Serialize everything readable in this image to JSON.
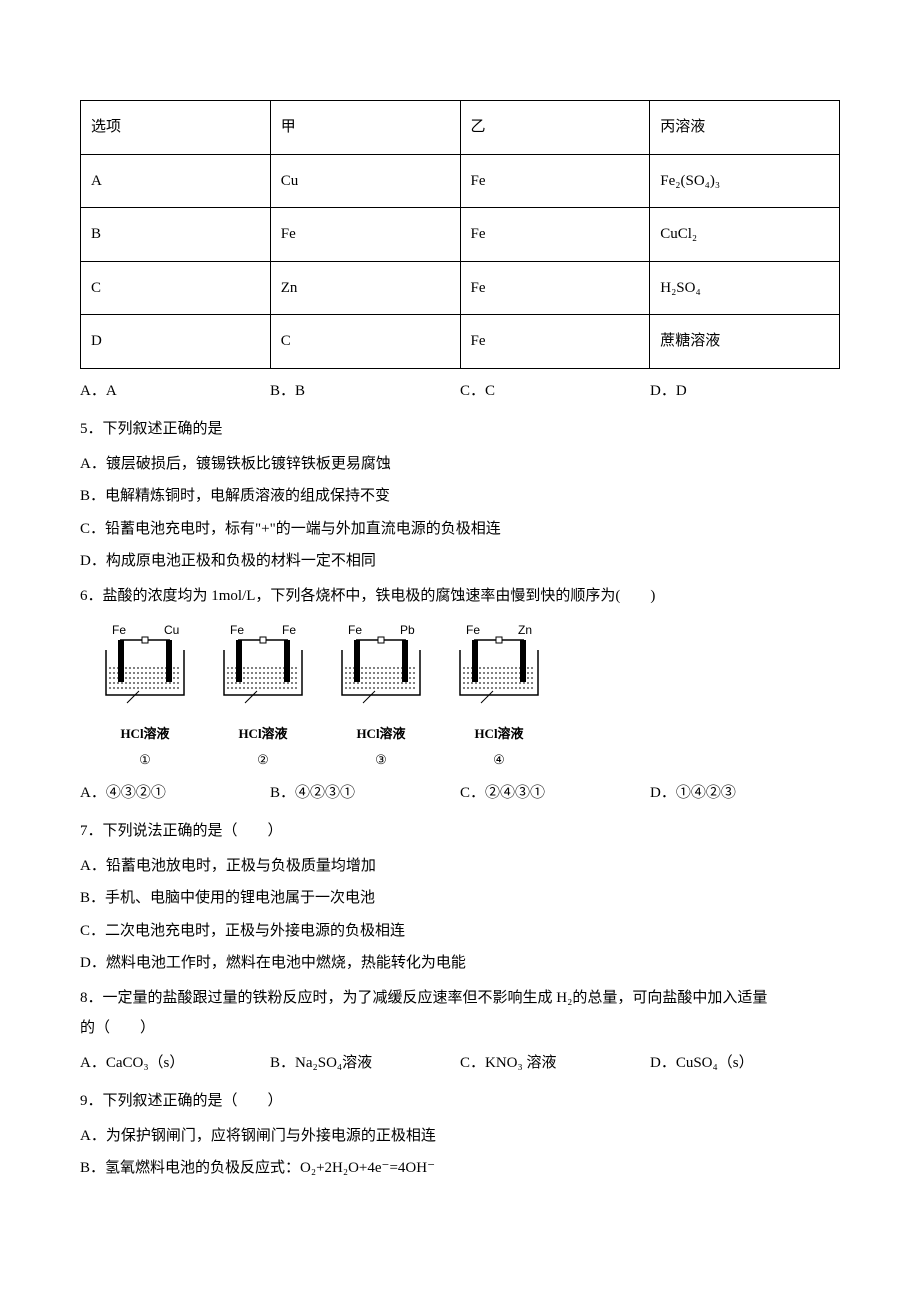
{
  "table": {
    "header": [
      "选项",
      "甲",
      "乙",
      "丙溶液"
    ],
    "rows": [
      [
        "A",
        "Cu",
        "Fe",
        "Fe₂(SO₄)₃"
      ],
      [
        "B",
        "Fe",
        "Fe",
        "CuCl₂"
      ],
      [
        "C",
        "Zn",
        "Fe",
        "H₂SO₄"
      ],
      [
        "D",
        "C",
        "Fe",
        "蔗糖溶液"
      ]
    ]
  },
  "q4_opts": {
    "a": "A．A",
    "b": "B．B",
    "c": "C．C",
    "d": "D．D"
  },
  "q5": {
    "stem": "5．下列叙述正确的是",
    "a": "A．镀层破损后，镀锡铁板比镀锌铁板更易腐蚀",
    "b": "B．电解精炼铜时，电解质溶液的组成保持不变",
    "c": "C．铅蓄电池充电时，标有\"+\"的一端与外加直流电源的负极相连",
    "d": "D．构成原电池正极和负极的材料一定不相同"
  },
  "q6": {
    "stem": "6．盐酸的浓度均为 1mol/L，下列各烧杯中，铁电极的腐蚀速率由慢到快的顺序为(　　)",
    "diagrams": [
      {
        "left": "Fe",
        "right": "Cu",
        "sol": "HCl溶液",
        "num": "①"
      },
      {
        "left": "Fe",
        "right": "Fe",
        "sol": "HCl溶液",
        "num": "②"
      },
      {
        "left": "Fe",
        "right": "Pb",
        "sol": "HCl溶液",
        "num": "③"
      },
      {
        "left": "Fe",
        "right": "Zn",
        "sol": "HCl溶液",
        "num": "④"
      }
    ],
    "a": "A．④③②①",
    "b": "B．④②③①",
    "c": "C．②④③①",
    "d": "D．①④②③"
  },
  "q7": {
    "stem": "7．下列说法正确的是（　　）",
    "a": "A．铅蓄电池放电时，正极与负极质量均增加",
    "b": "B．手机、电脑中使用的锂电池属于一次电池",
    "c": "C．二次电池充电时，正极与外接电源的负极相连",
    "d": "D．燃料电池工作时，燃料在电池中燃烧，热能转化为电能"
  },
  "q8": {
    "stem1": "8．一定量的盐酸跟过量的铁粉反应时，为了减缓反应速率但不影响生成 H₂的总量，可向盐酸中加入适量",
    "stem2": "的（　　）",
    "a": "A．CaCO₃（s）",
    "b": "B．Na₂SO₄溶液",
    "c": "C．KNO₃ 溶液",
    "d": "D．CuSO₄（s）"
  },
  "q9": {
    "stem": "9．下列叙述正确的是（　　）",
    "a": "A．为保护钢闸门，应将钢闸门与外接电源的正极相连",
    "b": "B．氢氧燃料电池的负极反应式：O₂+2H₂O+4e⁻=4OH⁻"
  },
  "colors": {
    "text": "#000000",
    "bg": "#ffffff",
    "border": "#000000",
    "electrode": "#000000",
    "liquid_line": "#333333"
  }
}
